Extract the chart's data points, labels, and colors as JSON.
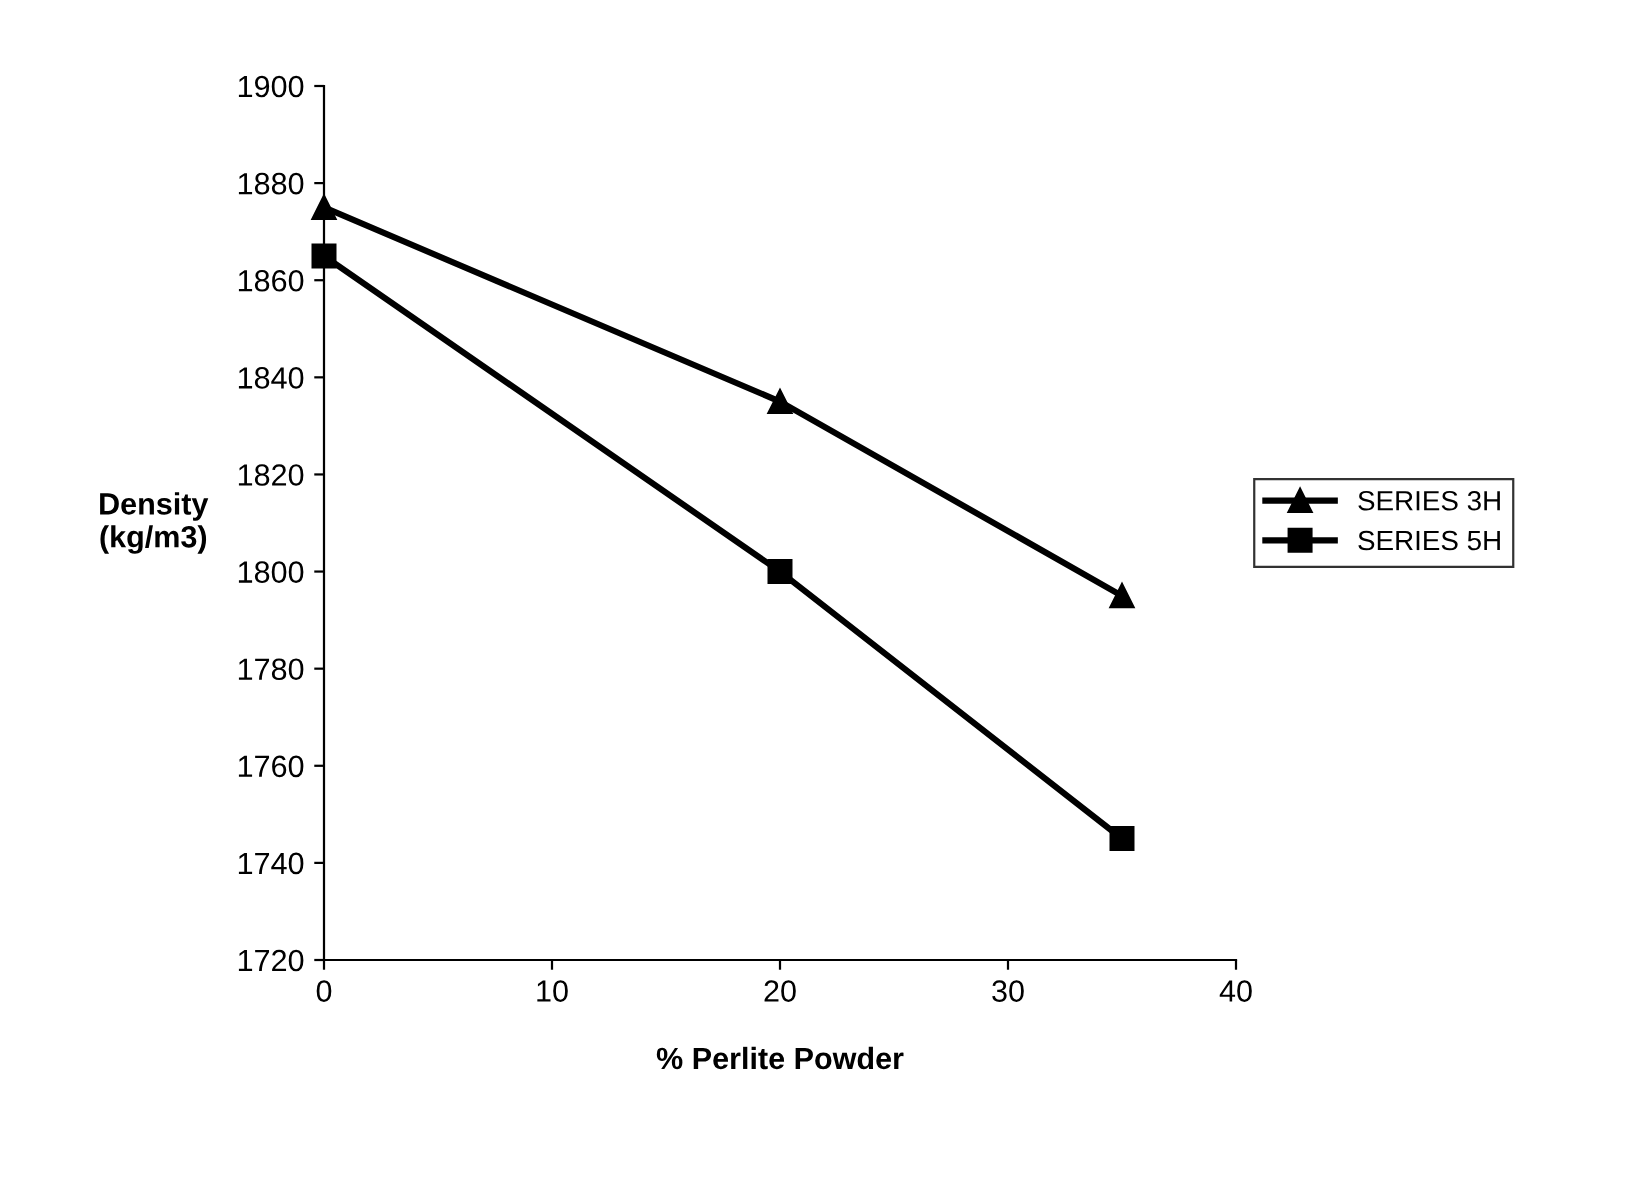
{
  "chart_data": {
    "type": "line",
    "xlabel": "% Perlite Powder",
    "ylabel": "Density\n(kg/m3)",
    "x": [
      0,
      20,
      35
    ],
    "series": [
      {
        "name": "SERIES 3H",
        "color": "#000000",
        "marker": "triangle",
        "values": [
          1875,
          1835,
          1795
        ]
      },
      {
        "name": "SERIES 5H",
        "color": "#000000",
        "marker": "square",
        "values": [
          1865,
          1800,
          1745
        ]
      }
    ],
    "xlim": [
      0,
      40
    ],
    "xticks": [
      0,
      10,
      20,
      30,
      40
    ],
    "ylim": [
      1720,
      1900
    ],
    "yticks": [
      1720,
      1740,
      1760,
      1780,
      1800,
      1820,
      1840,
      1860,
      1880,
      1900
    ],
    "grid": false,
    "legend": "right",
    "line_style": "solid"
  }
}
